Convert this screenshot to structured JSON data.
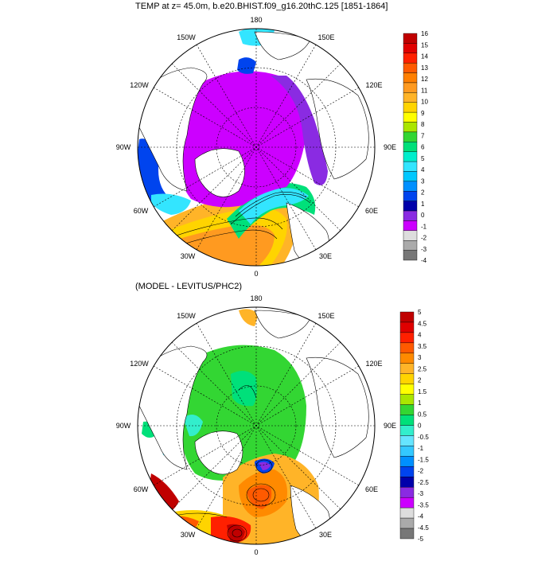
{
  "panels": [
    {
      "id": "top",
      "title": "TEMP at z=  45.0m, b.e20.BHIST.f09_g16.20thC.125 [1851-1864]",
      "lon_labels": [
        "180",
        "150E",
        "120E",
        "90E",
        "60E",
        "30E",
        "0",
        "30W",
        "60W",
        "90W",
        "120W",
        "150W"
      ],
      "colorbar": {
        "labels": [
          "16",
          "15",
          "14",
          "13",
          "12",
          "11",
          "10",
          "9",
          "8",
          "7",
          "6",
          "5",
          "4",
          "3",
          "2",
          "1",
          "0",
          "-1",
          "-2",
          "-3",
          "-4"
        ],
        "colors": [
          "#c00000",
          "#e00000",
          "#ff2000",
          "#ff5a00",
          "#ff7f00",
          "#ff9a20",
          "#ffb428",
          "#ffd400",
          "#ffff00",
          "#aae600",
          "#33d633",
          "#00e07a",
          "#00eecc",
          "#33e5ff",
          "#00c8ff",
          "#0090ff",
          "#0044ee",
          "#0000aa",
          "#8a2be2",
          "#cc00ff",
          "#dddddd",
          "#aaaaaa",
          "#777777"
        ]
      }
    },
    {
      "id": "bottom",
      "title": "(MODEL - LEVITUS/PHC2)",
      "lon_labels": [
        "180",
        "150E",
        "120E",
        "90E",
        "60E",
        "30E",
        "0",
        "30W",
        "60W",
        "90W",
        "120W",
        "150W"
      ],
      "colorbar": {
        "labels": [
          "5",
          "4.5",
          "4",
          "3.5",
          "3",
          "2.5",
          "2",
          "1.5",
          "1",
          "0.5",
          "0",
          "-0.5",
          "-1",
          "-1.5",
          "-2",
          "-2.5",
          "-3",
          "-3.5",
          "-4",
          "-4.5",
          "-5"
        ],
        "colors": [
          "#c00000",
          "#e00000",
          "#ff2000",
          "#ff5a00",
          "#ff8a00",
          "#ffb428",
          "#ffd400",
          "#ffff00",
          "#aae600",
          "#33d633",
          "#00e07a",
          "#33eecc",
          "#66e5ff",
          "#33c8ff",
          "#0090ff",
          "#0044ee",
          "#0000aa",
          "#8a2be2",
          "#cc00ff",
          "#dddddd",
          "#aaaaaa",
          "#777777"
        ]
      }
    }
  ]
}
